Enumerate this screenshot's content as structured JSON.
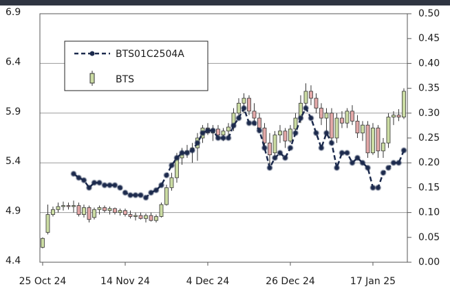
{
  "chart_data": {
    "type": "candlestick",
    "xlim": [
      -0.53,
      70.67
    ],
    "xticks": [
      {
        "value": 0,
        "label": "25 Oct 24"
      },
      {
        "value": 16,
        "label": "14 Nov 24"
      },
      {
        "value": 32,
        "label": "4 Dec 24"
      },
      {
        "value": 48,
        "label": "26 Dec 24"
      },
      {
        "value": 64,
        "label": "17 Jan 25"
      }
    ],
    "ylim": [
      4.4,
      6.9
    ],
    "yticks": [
      4.4,
      4.9,
      5.4,
      5.9,
      6.4,
      6.9
    ],
    "y2lim": [
      0,
      0.5
    ],
    "y2ticks": [
      {
        "value": 0,
        "label": "0.00"
      },
      0.05,
      {
        "value": 0.1,
        "label": "0.10"
      },
      0.15,
      {
        "value": 0.2,
        "label": "0.20"
      },
      0.25,
      {
        "value": 0.3,
        "label": "0.30"
      },
      0.35,
      {
        "value": 0.4,
        "label": "0.40"
      },
      0.45,
      {
        "value": 0.5,
        "label": "0.50"
      }
    ],
    "grid": true,
    "legend": "upper left",
    "series": [
      {
        "name": "BTS01C2504A",
        "axis": "y2",
        "color": "#1c2a4d",
        "values": [
          null,
          null,
          null,
          null,
          null,
          null,
          0.178,
          0.17,
          0.165,
          0.15,
          0.16,
          0.16,
          0.155,
          0.155,
          0.155,
          0.15,
          0.14,
          0.135,
          0.135,
          0.135,
          0.13,
          0.14,
          0.145,
          0.155,
          0.175,
          0.195,
          0.21,
          0.22,
          0.22,
          0.225,
          0.24,
          0.26,
          0.265,
          0.265,
          0.25,
          0.25,
          0.25,
          0.275,
          0.29,
          0.31,
          0.28,
          0.28,
          0.265,
          0.23,
          0.19,
          0.21,
          0.22,
          0.21,
          0.23,
          0.26,
          0.29,
          0.31,
          0.29,
          0.26,
          0.23,
          0.26,
          0.24,
          0.19,
          0.22,
          0.22,
          0.2,
          0.21,
          0.2,
          0.19,
          0.15,
          0.15,
          0.18,
          0.19,
          0.2,
          0.2,
          0.225
        ]
      },
      {
        "name": "BTS",
        "up_color": "#cbdca3",
        "down_color": "#e3a8a8",
        "open": [
          4.55,
          4.7,
          4.88,
          4.93,
          4.96,
          4.97,
          4.96,
          4.97,
          4.88,
          4.95,
          4.85,
          4.93,
          4.95,
          4.92,
          4.94,
          4.9,
          4.92,
          4.88,
          4.86,
          4.87,
          4.84,
          4.87,
          4.82,
          4.86,
          4.98,
          5.15,
          5.25,
          5.45,
          5.5,
          5.52,
          5.55,
          5.65,
          5.75,
          5.7,
          5.74,
          5.68,
          5.72,
          5.76,
          5.9,
          6.0,
          6.05,
          5.92,
          5.85,
          5.75,
          5.6,
          5.5,
          5.68,
          5.72,
          5.62,
          5.74,
          5.85,
          6.0,
          6.12,
          6.05,
          5.95,
          5.85,
          5.9,
          5.65,
          5.85,
          5.8,
          5.92,
          5.82,
          5.7,
          5.78,
          5.5,
          5.75,
          5.52,
          5.6,
          5.86,
          5.88,
          5.86
        ],
        "high": [
          4.65,
          4.98,
          4.96,
          5.0,
          5.01,
          5.0,
          5.02,
          5.0,
          4.98,
          4.97,
          4.95,
          4.97,
          4.97,
          4.96,
          4.95,
          4.94,
          4.94,
          4.92,
          4.9,
          4.9,
          4.89,
          4.9,
          4.88,
          5.0,
          5.18,
          5.3,
          5.5,
          5.55,
          5.58,
          5.6,
          5.7,
          5.78,
          5.8,
          5.78,
          5.78,
          5.75,
          5.8,
          5.95,
          6.05,
          6.1,
          6.08,
          6.0,
          5.9,
          5.8,
          5.7,
          5.72,
          5.78,
          5.75,
          5.78,
          5.9,
          6.08,
          6.2,
          6.18,
          6.1,
          6.0,
          5.95,
          5.95,
          5.9,
          5.92,
          5.95,
          5.98,
          5.88,
          5.82,
          5.82,
          5.8,
          5.78,
          5.65,
          5.9,
          5.92,
          5.94,
          6.15
        ],
        "low": [
          4.54,
          4.68,
          4.86,
          4.9,
          4.92,
          4.93,
          4.9,
          4.86,
          4.85,
          4.8,
          4.83,
          4.88,
          4.9,
          4.88,
          4.88,
          4.87,
          4.86,
          4.84,
          4.82,
          4.83,
          4.8,
          4.81,
          4.8,
          4.85,
          4.97,
          5.12,
          5.2,
          5.38,
          5.45,
          5.4,
          5.42,
          5.6,
          5.68,
          5.62,
          5.65,
          5.62,
          5.66,
          5.72,
          5.85,
          5.9,
          5.88,
          5.8,
          5.7,
          5.55,
          5.35,
          5.45,
          5.6,
          5.55,
          5.6,
          5.7,
          5.8,
          5.95,
          5.98,
          5.9,
          5.78,
          5.7,
          5.62,
          5.6,
          5.75,
          5.75,
          5.78,
          5.65,
          5.62,
          5.45,
          5.48,
          5.45,
          5.45,
          5.55,
          5.78,
          5.82,
          5.84
        ],
        "close": [
          4.64,
          4.88,
          4.93,
          4.96,
          4.97,
          4.96,
          4.97,
          4.88,
          4.95,
          4.83,
          4.93,
          4.95,
          4.92,
          4.94,
          4.9,
          4.92,
          4.88,
          4.86,
          4.87,
          4.84,
          4.87,
          4.82,
          4.86,
          4.98,
          5.15,
          5.25,
          5.45,
          5.5,
          5.52,
          5.55,
          5.65,
          5.75,
          5.7,
          5.74,
          5.68,
          5.72,
          5.76,
          5.9,
          6.0,
          6.05,
          5.92,
          5.85,
          5.75,
          5.6,
          5.48,
          5.68,
          5.72,
          5.62,
          5.74,
          5.85,
          6.0,
          6.12,
          6.05,
          5.95,
          5.85,
          5.9,
          5.65,
          5.85,
          5.8,
          5.92,
          5.82,
          5.7,
          5.78,
          5.5,
          5.75,
          5.52,
          5.6,
          5.86,
          5.88,
          5.86,
          6.12
        ]
      }
    ]
  }
}
